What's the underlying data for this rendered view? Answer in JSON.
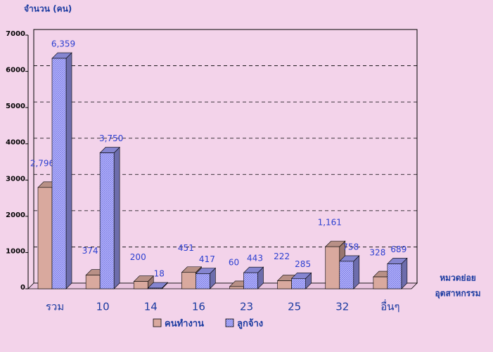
{
  "chart_data": {
    "type": "bar3d",
    "title": "จำนวน (คน)",
    "xlabel": [
      "หมวดย่อย",
      "อุตสาหกรรม"
    ],
    "categories": [
      "รวม",
      "10",
      "14",
      "16",
      "23",
      "25",
      "32",
      "อื่นๆ"
    ],
    "series": [
      {
        "name": "คนทำงาน",
        "color": "#d9a99e",
        "values": [
          2796,
          374,
          200,
          451,
          60,
          222,
          1161,
          328
        ],
        "value_labels": [
          "2,796",
          "374",
          "200",
          "451",
          "60",
          "222",
          "1,161",
          "328"
        ]
      },
      {
        "name": "ลูกจ้าง",
        "color": "#9c9cf5",
        "values": [
          6359,
          3750,
          18,
          417,
          443,
          285,
          758,
          689
        ],
        "value_labels": [
          "6,359",
          "3,750",
          "18",
          "417",
          "443",
          "285",
          "758",
          "689"
        ]
      }
    ],
    "ylim": [
      0,
      7000
    ],
    "yticks": [
      0,
      1000,
      2000,
      3000,
      4000,
      5000,
      6000,
      7000
    ],
    "grid": true
  }
}
